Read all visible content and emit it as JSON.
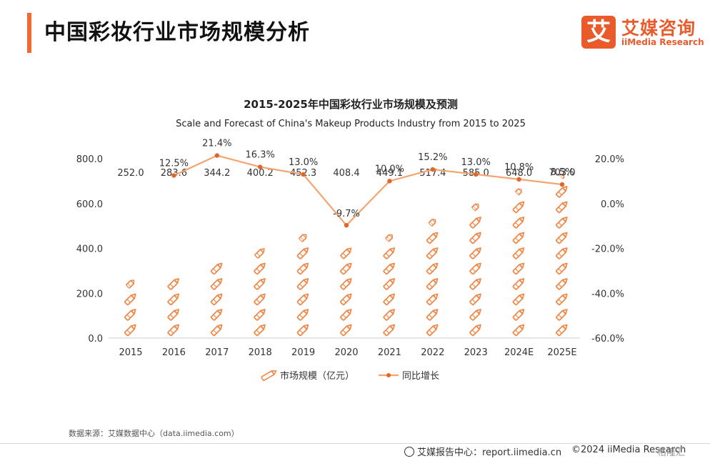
{
  "header": {
    "title": "中国彩妆行业市场规模分析"
  },
  "logo": {
    "mark": "艾",
    "cn": "艾媒咨询",
    "en": "iiMedia Research"
  },
  "chart_data": {
    "type": "bar+line",
    "title": "2015-2025年中国彩妆行业市场规模及预测",
    "subtitle": "Scale and Forecast of China's Makeup Products Industry from 2015 to 2025",
    "categories": [
      "2015",
      "2016",
      "2017",
      "2018",
      "2019",
      "2020",
      "2021",
      "2022",
      "2023",
      "2024E",
      "2025E"
    ],
    "series": [
      {
        "name": "市场规模（亿元）",
        "type": "pictorial-bar",
        "axis": "left",
        "values": [
          252.0,
          283.6,
          344.2,
          400.2,
          452.3,
          408.4,
          449.1,
          517.4,
          585.0,
          648.0,
          703.0
        ],
        "labels": [
          "252.0",
          "283.6",
          "344.2",
          "400.2",
          "452.3",
          "408.4",
          "449.1",
          "517.4",
          "585.0",
          "648.0",
          "703.0"
        ]
      },
      {
        "name": "同比增长",
        "type": "line",
        "axis": "right",
        "values": [
          null,
          12.5,
          21.4,
          16.3,
          13.0,
          -9.7,
          10.0,
          15.2,
          13.0,
          10.8,
          8.5
        ],
        "labels": [
          "",
          "12.5%",
          "21.4%",
          "16.3%",
          "13.0%",
          "-9.7%",
          "10.0%",
          "15.2%",
          "13.0%",
          "10.8%",
          "8.5%"
        ]
      }
    ],
    "ylim_left": [
      0,
      800
    ],
    "yticks_left": [
      "0.0",
      "200.0",
      "400.0",
      "600.0",
      "800.0"
    ],
    "ylim_right": [
      -60,
      20
    ],
    "yticks_right": [
      "-60.0%",
      "-40.0%",
      "-20.0%",
      "0.0%",
      "20.0%"
    ],
    "legend_position": "bottom",
    "grid": false,
    "colors": {
      "bar": "#f08a4b",
      "line": "#f3a46f",
      "marker": "#e0662a"
    }
  },
  "footer": {
    "source": "数据来源：艾媒数据中心（data.iimedia.com）",
    "report": "艾媒报告中心：report.iimedia.cn",
    "copyright": "©2024  iiMedia Research",
    "watermark": "格隆汇"
  }
}
